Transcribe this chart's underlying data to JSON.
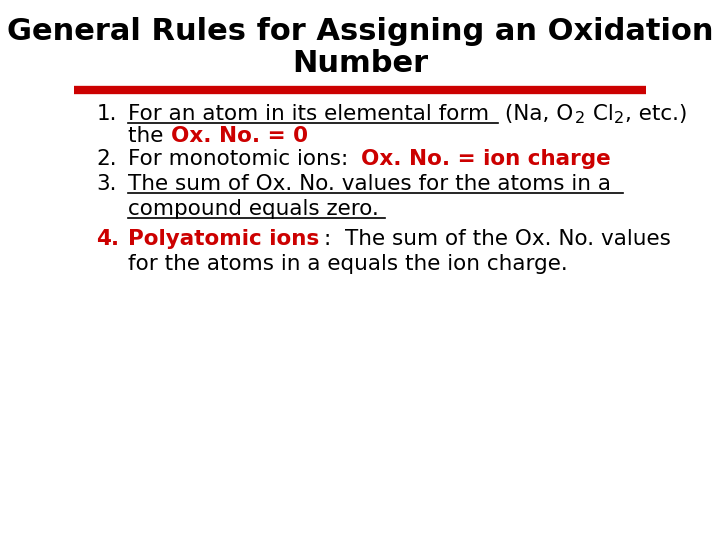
{
  "title_line1": "General Rules for Assigning an Oxidation",
  "title_line2": "Number",
  "title_fontsize": 22,
  "title_bold": true,
  "title_color": "#000000",
  "bg_color": "#ffffff",
  "rule_color": "#cc0000",
  "rule_linewidth": 6,
  "black": "#000000",
  "red": "#cc0000",
  "body_fontsize": 15.5,
  "items": [
    {
      "number": "1.",
      "number_color": "#000000",
      "segments": [
        {
          "text": "For an atom in its elemental form",
          "color": "#000000",
          "bold": false,
          "underline": true
        },
        {
          "text": " (Na, O",
          "color": "#000000",
          "bold": false,
          "underline": false
        },
        {
          "text": "2",
          "color": "#000000",
          "bold": false,
          "underline": false,
          "sub": true
        },
        {
          "text": " Cl",
          "color": "#000000",
          "bold": false,
          "underline": false
        },
        {
          "text": "2",
          "color": "#000000",
          "bold": false,
          "underline": false,
          "sub": true
        },
        {
          "text": ", etc.)",
          "color": "#000000",
          "bold": false,
          "underline": false
        }
      ],
      "line2_segments": [
        {
          "text": "the ",
          "color": "#000000",
          "bold": false,
          "underline": false
        },
        {
          "text": "Ox. No. = 0",
          "color": "#cc0000",
          "bold": true,
          "underline": false
        }
      ]
    },
    {
      "number": "2.",
      "number_color": "#000000",
      "segments": [
        {
          "text": "For monotomic ions: ",
          "color": "#000000",
          "bold": false,
          "underline": false
        },
        {
          "text": "Ox. No. = ion charge",
          "color": "#cc0000",
          "bold": true,
          "underline": false
        }
      ],
      "line2_segments": []
    },
    {
      "number": "3.",
      "number_color": "#000000",
      "segments": [
        {
          "text": "The sum of Ox. No. values for the atoms in a",
          "color": "#000000",
          "bold": false,
          "underline": true
        }
      ],
      "line2_segments": [
        {
          "text": "compound equals zero.",
          "color": "#000000",
          "bold": false,
          "underline": true
        }
      ]
    },
    {
      "number": "4.",
      "number_color": "#cc0000",
      "segments": [
        {
          "text": "Polyatomic ions",
          "color": "#cc0000",
          "bold": true,
          "underline": false
        },
        {
          "text": ":  The sum of the Ox. No. values",
          "color": "#000000",
          "bold": false,
          "underline": false
        }
      ],
      "line2_segments": [
        {
          "text": "for the atoms in a equals the ion charge.",
          "color": "#000000",
          "bold": false,
          "underline": false
        }
      ]
    }
  ]
}
